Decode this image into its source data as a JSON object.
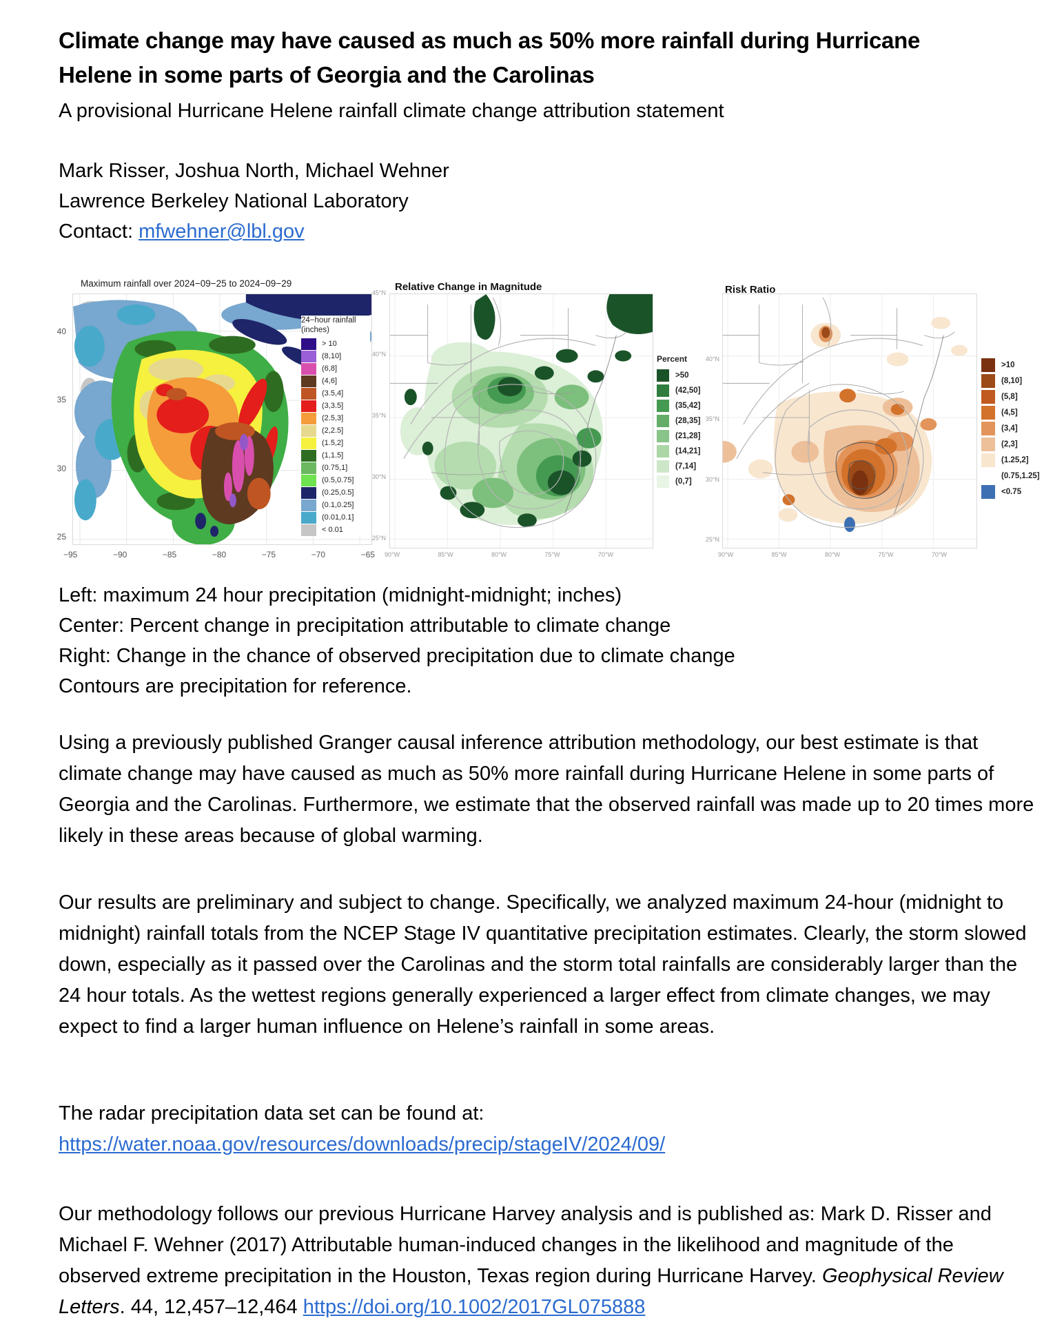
{
  "colors": {
    "link_blue": "#2b6bd0",
    "text": "#000000"
  },
  "header": {
    "title": "Climate change may have caused as much as 50% more rainfall during Hurricane Helene in some parts of Georgia and the Carolinas",
    "subtitle": "A provisional Hurricane Helene rainfall climate change attribution statement",
    "authors": "Mark Risser, Joshua North, Michael Wehner",
    "affiliation": "Lawrence Berkeley National Laboratory",
    "contact_label": "Contact: ",
    "contact_email": "mfwehner@lbl.gov"
  },
  "figures": {
    "left": {
      "title": "Maximum rainfall over 2024−09−25 to 2024−09−29",
      "legend_title_line1": "24−hour rainfall",
      "legend_title_line2": "(inches)",
      "y_ticks": [
        "40",
        "35",
        "30",
        "25"
      ],
      "x_ticks": [
        "−95",
        "−90",
        "−85",
        "−80",
        "−75",
        "−70",
        "−65"
      ],
      "legend": [
        {
          "label": "> 10",
          "color": "#2f0e87"
        },
        {
          "label": "(8,10]",
          "color": "#9a5ed6"
        },
        {
          "label": "(6,8]",
          "color": "#d94fae"
        },
        {
          "label": "(4,6]",
          "color": "#5e3a21"
        },
        {
          "label": "(3.5,4]",
          "color": "#bf5522"
        },
        {
          "label": "(3,3.5]",
          "color": "#e31e1b"
        },
        {
          "label": "(2.5,3]",
          "color": "#f59c3b"
        },
        {
          "label": "(2,2.5]",
          "color": "#e6d98e"
        },
        {
          "label": "(1.5,2]",
          "color": "#f6f13e"
        },
        {
          "label": "(1,1.5]",
          "color": "#2e6d21"
        },
        {
          "label": "(0.75,1]",
          "color": "#6ab85f"
        },
        {
          "label": "(0.5,0.75]",
          "color": "#6fe24f"
        },
        {
          "label": "(0.25,0.5]",
          "color": "#1e2569"
        },
        {
          "label": "(0.1,0.25]",
          "color": "#78a7cf"
        },
        {
          "label": "(0.01,0.1]",
          "color": "#49a9cb"
        },
        {
          "label": "< 0.01",
          "color": "#c6c6c6"
        }
      ]
    },
    "center": {
      "title": "Relative Change in Magnitude",
      "legend_title": "Percent",
      "y_ticks": [
        "45°N",
        "40°N",
        "35°N",
        "30°N",
        "25°N"
      ],
      "x_ticks": [
        "90°W",
        "85°W",
        "80°W",
        "75°W",
        "70°W"
      ],
      "legend": [
        {
          "label": ">50",
          "color": "#1b5329"
        },
        {
          "label": "(42,50]",
          "color": "#2f7d3e"
        },
        {
          "label": "(35,42]",
          "color": "#459a52"
        },
        {
          "label": "(28,35]",
          "color": "#63ad68"
        },
        {
          "label": "(21,28]",
          "color": "#89c488"
        },
        {
          "label": "(14,21]",
          "color": "#abd6a6"
        },
        {
          "label": "(7,14]",
          "color": "#cde6c8"
        },
        {
          "label": "(0,7]",
          "color": "#e8f4e4"
        }
      ]
    },
    "right": {
      "title": "Risk Ratio",
      "y_ticks": [
        "40°N",
        "35°N",
        "30°N",
        "25°N"
      ],
      "x_ticks": [
        "90°W",
        "85°W",
        "80°W",
        "75°W",
        "70°W"
      ],
      "legend": [
        {
          "label": ">10",
          "color": "#7a3110"
        },
        {
          "label": "(8,10]",
          "color": "#9c4a17"
        },
        {
          "label": "(5,8]",
          "color": "#c05a20"
        },
        {
          "label": "(4,5]",
          "color": "#d3722b"
        },
        {
          "label": "(3,4]",
          "color": "#e2945a"
        },
        {
          "label": "(2,3]",
          "color": "#edc09a"
        },
        {
          "label": "(1.25,2]",
          "color": "#f8e6cf"
        },
        {
          "label": "(0.75,1.25]",
          "color": "#ffffff"
        },
        {
          "label": "<0.75",
          "color": "#3d6fb3"
        }
      ]
    }
  },
  "caption": {
    "lines": [
      "Left: maximum 24 hour precipitation (midnight-midnight; inches)",
      "Center: Percent change in precipitation attributable to climate change",
      "Right: Change in the chance of observed precipitation due to climate change",
      "Contours are precipitation for reference."
    ]
  },
  "paragraphs": {
    "p1": "Using a previously published Granger causal inference attribution methodology, our best estimate is that climate change may have caused as much as 50% more rainfall during Hurricane Helene in some parts of Georgia and the Carolinas. Furthermore, we estimate that the observed rainfall was made up to 20 times more likely in these areas because of global warming.",
    "p2": "Our results are preliminary and subject to change. Specifically, we analyzed maximum 24-hour (midnight to midnight) rainfall totals from the NCEP Stage IV quantitative precipitation estimates. Clearly, the storm slowed down, especially as it passed over the Carolinas and the storm total rainfalls are considerably larger than the 24 hour totals. As the wettest regions generally experienced a larger effect from climate changes, we may expect to find a larger human influence on Helene’s rainfall in some areas.",
    "p3_text": "The radar precipitation data set can be found at:",
    "p3_link": "https://water.noaa.gov/resources/downloads/precip/stageIV/2024/09/",
    "p4_part1": "Our methodology follows our previous Hurricane Harvey analysis and is published as: Mark D. Risser and Michael F. Wehner (2017) Attributable human-induced changes in the likelihood and magnitude of the observed extreme precipitation in the Houston, Texas region during Hurricane Harvey. ",
    "p4_italic": "Geophysical Review Letters",
    "p4_part2": ". 44, 12,457–12,464 ",
    "p4_link": "https://doi.org/10.1002/2017GL075888"
  }
}
